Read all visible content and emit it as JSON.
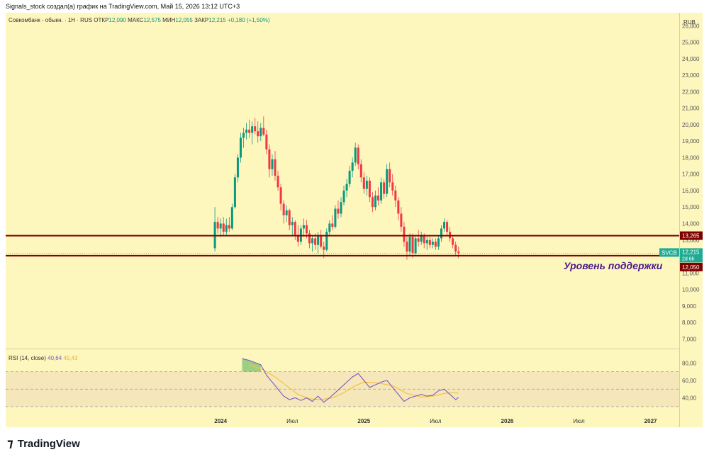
{
  "header": {
    "attribution": "Signals_stock создал(а) график на TradingView.com, Май 15, 2026 13:12 UTC+3"
  },
  "legend": {
    "symbol": "Совкомбанк - обыкн. · 1Н · RUS",
    "open_label": "ОТКР",
    "open": "12,090",
    "high_label": "МАКС",
    "high": "12,575",
    "low_label": "МИН",
    "low": "12,055",
    "close_label": "ЗАКР",
    "close": "12,215",
    "change": "+0,180 (+1,50%)"
  },
  "currency": "RUB",
  "price_badges": {
    "resistance": "13,265",
    "ticker": "SVCB",
    "last": "12,215",
    "countdown": "2d 6h",
    "support": "12,050"
  },
  "annotation": "Уровень поддержки",
  "rsi_legend": {
    "label": "RSI (14, close)",
    "rsi": "40,64",
    "ma": "45,43"
  },
  "footer": {
    "brand": "TradingView"
  },
  "colors": {
    "background": "#fdf6bd",
    "up": "#089981",
    "down": "#f23645",
    "level": "#800000",
    "rsi": "#7e57c2",
    "rsi_ma": "#f5c242",
    "ticker_badge": "#22ab94",
    "annotation": "#4a1a8c"
  },
  "chart_data": {
    "type": "candlestick",
    "title": "Совкомбанк - обыкн. · 1Н · RUS",
    "y_axis": {
      "ticks": [
        7000,
        8000,
        9000,
        10000,
        11000,
        12000,
        13000,
        14000,
        15000,
        16000,
        17000,
        18000,
        19000,
        20000,
        21000,
        22000,
        23000,
        24000,
        25000,
        26000
      ],
      "tick_labels": [
        "7,000",
        "8,000",
        "9,000",
        "10,000",
        "11,000",
        "12,000",
        "13,000",
        "14,000",
        "15,000",
        "16,000",
        "17,000",
        "18,000",
        "19,000",
        "20,000",
        "21,000",
        "22,000",
        "23,000",
        "24,000",
        "25,000",
        "26,000"
      ],
      "range": [
        6500,
        26700
      ]
    },
    "x_axis": {
      "labels": [
        "2024",
        "Июл",
        "2025",
        "Июл",
        "2026",
        "Июл",
        "2027"
      ],
      "label_times": [
        2024.0,
        2024.5,
        2025.0,
        2025.5,
        2026.0,
        2026.5,
        2027.0
      ],
      "range": [
        2022.5,
        2027.2
      ]
    },
    "levels": [
      {
        "price": 13265,
        "label": "13,265"
      },
      {
        "price": 12050,
        "label": "12,050"
      }
    ],
    "candles": [
      {
        "t": 2023.96,
        "o": 12500,
        "h": 15000,
        "l": 12300,
        "c": 14100
      },
      {
        "t": 2023.98,
        "o": 14100,
        "h": 14400,
        "l": 13400,
        "c": 13700
      },
      {
        "t": 2024.0,
        "o": 13700,
        "h": 14300,
        "l": 13200,
        "c": 14000
      },
      {
        "t": 2024.02,
        "o": 14000,
        "h": 14400,
        "l": 13300,
        "c": 13500
      },
      {
        "t": 2024.04,
        "o": 13500,
        "h": 14300,
        "l": 13300,
        "c": 13900
      },
      {
        "t": 2024.06,
        "o": 13900,
        "h": 14400,
        "l": 13500,
        "c": 13700
      },
      {
        "t": 2024.08,
        "o": 13700,
        "h": 15200,
        "l": 13600,
        "c": 15000
      },
      {
        "t": 2024.1,
        "o": 15000,
        "h": 17000,
        "l": 14900,
        "c": 16800
      },
      {
        "t": 2024.12,
        "o": 16800,
        "h": 18200,
        "l": 16500,
        "c": 18000
      },
      {
        "t": 2024.14,
        "o": 18000,
        "h": 19500,
        "l": 17700,
        "c": 19200
      },
      {
        "t": 2024.16,
        "o": 19200,
        "h": 19800,
        "l": 18600,
        "c": 19500
      },
      {
        "t": 2024.18,
        "o": 19500,
        "h": 20100,
        "l": 19100,
        "c": 19700
      },
      {
        "t": 2024.2,
        "o": 19700,
        "h": 20300,
        "l": 19200,
        "c": 19500
      },
      {
        "t": 2024.22,
        "o": 19500,
        "h": 20200,
        "l": 18800,
        "c": 19900
      },
      {
        "t": 2024.24,
        "o": 19900,
        "h": 20400,
        "l": 19400,
        "c": 19600
      },
      {
        "t": 2024.26,
        "o": 19600,
        "h": 20200,
        "l": 18900,
        "c": 19300
      },
      {
        "t": 2024.28,
        "o": 19300,
        "h": 20100,
        "l": 19000,
        "c": 19800
      },
      {
        "t": 2024.3,
        "o": 19800,
        "h": 20500,
        "l": 19300,
        "c": 19400
      },
      {
        "t": 2024.32,
        "o": 19400,
        "h": 19700,
        "l": 18200,
        "c": 18500
      },
      {
        "t": 2024.34,
        "o": 18500,
        "h": 18800,
        "l": 16800,
        "c": 17300
      },
      {
        "t": 2024.36,
        "o": 17300,
        "h": 18200,
        "l": 16900,
        "c": 17900
      },
      {
        "t": 2024.38,
        "o": 17900,
        "h": 18400,
        "l": 16600,
        "c": 16900
      },
      {
        "t": 2024.4,
        "o": 16900,
        "h": 17200,
        "l": 16000,
        "c": 16200
      },
      {
        "t": 2024.42,
        "o": 16200,
        "h": 16400,
        "l": 14800,
        "c": 15200
      },
      {
        "t": 2024.44,
        "o": 15200,
        "h": 15400,
        "l": 14000,
        "c": 14500
      },
      {
        "t": 2024.46,
        "o": 14500,
        "h": 15100,
        "l": 14100,
        "c": 14800
      },
      {
        "t": 2024.48,
        "o": 14800,
        "h": 14900,
        "l": 13600,
        "c": 13900
      },
      {
        "t": 2024.5,
        "o": 13900,
        "h": 14400,
        "l": 13300,
        "c": 14100
      },
      {
        "t": 2024.52,
        "o": 14100,
        "h": 14200,
        "l": 13000,
        "c": 13300
      },
      {
        "t": 2024.54,
        "o": 13300,
        "h": 13900,
        "l": 12600,
        "c": 12900
      },
      {
        "t": 2024.56,
        "o": 12900,
        "h": 13900,
        "l": 12700,
        "c": 13700
      },
      {
        "t": 2024.58,
        "o": 13700,
        "h": 14300,
        "l": 13200,
        "c": 13900
      },
      {
        "t": 2024.6,
        "o": 13900,
        "h": 14200,
        "l": 13100,
        "c": 13400
      },
      {
        "t": 2024.62,
        "o": 13400,
        "h": 13600,
        "l": 12500,
        "c": 12800
      },
      {
        "t": 2024.64,
        "o": 12800,
        "h": 13300,
        "l": 12300,
        "c": 13100
      },
      {
        "t": 2024.66,
        "o": 13100,
        "h": 13400,
        "l": 12400,
        "c": 12700
      },
      {
        "t": 2024.68,
        "o": 12700,
        "h": 13500,
        "l": 12200,
        "c": 13300
      },
      {
        "t": 2024.7,
        "o": 13300,
        "h": 13600,
        "l": 12500,
        "c": 12600
      },
      {
        "t": 2024.72,
        "o": 12600,
        "h": 12900,
        "l": 11900,
        "c": 12400
      },
      {
        "t": 2024.74,
        "o": 12400,
        "h": 13700,
        "l": 12300,
        "c": 13500
      },
      {
        "t": 2024.76,
        "o": 13500,
        "h": 14200,
        "l": 13300,
        "c": 14000
      },
      {
        "t": 2024.78,
        "o": 14000,
        "h": 14500,
        "l": 13600,
        "c": 13800
      },
      {
        "t": 2024.8,
        "o": 13800,
        "h": 15100,
        "l": 13700,
        "c": 14900
      },
      {
        "t": 2024.82,
        "o": 14900,
        "h": 15400,
        "l": 14300,
        "c": 14600
      },
      {
        "t": 2024.84,
        "o": 14600,
        "h": 15600,
        "l": 14400,
        "c": 15300
      },
      {
        "t": 2024.86,
        "o": 15300,
        "h": 16300,
        "l": 15100,
        "c": 16000
      },
      {
        "t": 2024.88,
        "o": 16000,
        "h": 16700,
        "l": 15600,
        "c": 16400
      },
      {
        "t": 2024.9,
        "o": 16400,
        "h": 17500,
        "l": 16200,
        "c": 17200
      },
      {
        "t": 2024.92,
        "o": 17200,
        "h": 18000,
        "l": 16800,
        "c": 17700
      },
      {
        "t": 2024.94,
        "o": 17700,
        "h": 18900,
        "l": 17500,
        "c": 18600
      },
      {
        "t": 2024.96,
        "o": 18600,
        "h": 18800,
        "l": 17300,
        "c": 17600
      },
      {
        "t": 2024.98,
        "o": 17600,
        "h": 17900,
        "l": 16500,
        "c": 16800
      },
      {
        "t": 2025.0,
        "o": 16800,
        "h": 17100,
        "l": 15800,
        "c": 16100
      },
      {
        "t": 2025.02,
        "o": 16100,
        "h": 16900,
        "l": 15700,
        "c": 16600
      },
      {
        "t": 2025.04,
        "o": 16600,
        "h": 16800,
        "l": 15300,
        "c": 15600
      },
      {
        "t": 2025.06,
        "o": 15600,
        "h": 15900,
        "l": 14700,
        "c": 15000
      },
      {
        "t": 2025.08,
        "o": 15000,
        "h": 16000,
        "l": 14800,
        "c": 15700
      },
      {
        "t": 2025.1,
        "o": 15700,
        "h": 16200,
        "l": 15100,
        "c": 15400
      },
      {
        "t": 2025.12,
        "o": 15400,
        "h": 16800,
        "l": 15200,
        "c": 16500
      },
      {
        "t": 2025.14,
        "o": 16500,
        "h": 16700,
        "l": 15500,
        "c": 15800
      },
      {
        "t": 2025.16,
        "o": 15800,
        "h": 17600,
        "l": 15600,
        "c": 17300
      },
      {
        "t": 2025.18,
        "o": 17300,
        "h": 17700,
        "l": 16200,
        "c": 16500
      },
      {
        "t": 2025.2,
        "o": 16500,
        "h": 17000,
        "l": 15700,
        "c": 16000
      },
      {
        "t": 2025.22,
        "o": 16000,
        "h": 16300,
        "l": 15000,
        "c": 15400
      },
      {
        "t": 2025.24,
        "o": 15400,
        "h": 15600,
        "l": 14200,
        "c": 14600
      },
      {
        "t": 2025.26,
        "o": 14600,
        "h": 15000,
        "l": 13500,
        "c": 13800
      },
      {
        "t": 2025.28,
        "o": 13800,
        "h": 14100,
        "l": 12600,
        "c": 12900
      },
      {
        "t": 2025.3,
        "o": 12900,
        "h": 13200,
        "l": 11800,
        "c": 12300
      },
      {
        "t": 2025.32,
        "o": 12300,
        "h": 13400,
        "l": 12000,
        "c": 13200
      },
      {
        "t": 2025.34,
        "o": 13200,
        "h": 13400,
        "l": 11900,
        "c": 12200
      },
      {
        "t": 2025.36,
        "o": 12200,
        "h": 13300,
        "l": 12100,
        "c": 13100
      },
      {
        "t": 2025.38,
        "o": 13100,
        "h": 13600,
        "l": 12600,
        "c": 12900
      },
      {
        "t": 2025.4,
        "o": 12900,
        "h": 13500,
        "l": 12700,
        "c": 13300
      },
      {
        "t": 2025.42,
        "o": 13300,
        "h": 13400,
        "l": 12500,
        "c": 12800
      },
      {
        "t": 2025.44,
        "o": 12800,
        "h": 13200,
        "l": 12400,
        "c": 13000
      },
      {
        "t": 2025.46,
        "o": 13000,
        "h": 13200,
        "l": 12500,
        "c": 12700
      },
      {
        "t": 2025.48,
        "o": 12700,
        "h": 13100,
        "l": 12500,
        "c": 12900
      },
      {
        "t": 2025.5,
        "o": 12900,
        "h": 13100,
        "l": 12400,
        "c": 12600
      },
      {
        "t": 2025.52,
        "o": 12600,
        "h": 13300,
        "l": 12400,
        "c": 13100
      },
      {
        "t": 2025.54,
        "o": 13100,
        "h": 13900,
        "l": 12900,
        "c": 13700
      },
      {
        "t": 2025.56,
        "o": 13700,
        "h": 14300,
        "l": 13500,
        "c": 14100
      },
      {
        "t": 2025.58,
        "o": 14100,
        "h": 14200,
        "l": 13300,
        "c": 13500
      },
      {
        "t": 2025.6,
        "o": 13500,
        "h": 13800,
        "l": 12900,
        "c": 13100
      },
      {
        "t": 2025.62,
        "o": 13100,
        "h": 13300,
        "l": 12500,
        "c": 12700
      },
      {
        "t": 2025.64,
        "o": 12700,
        "h": 12900,
        "l": 12000,
        "c": 12300
      },
      {
        "t": 2025.66,
        "o": 12300,
        "h": 12600,
        "l": 11900,
        "c": 12200
      }
    ],
    "rsi": {
      "name": "RSI (14, close)",
      "y_ticks": [
        40,
        60,
        80
      ],
      "y_tick_labels": [
        "40,00",
        "60,00",
        "80,00"
      ],
      "bands": [
        30,
        50,
        70
      ],
      "range": [
        25,
        90
      ],
      "rsi_values": [
        [
          2024.15,
          85
        ],
        [
          2024.2,
          83
        ],
        [
          2024.28,
          78
        ],
        [
          2024.32,
          66
        ],
        [
          2024.36,
          58
        ],
        [
          2024.4,
          50
        ],
        [
          2024.44,
          42
        ],
        [
          2024.48,
          38
        ],
        [
          2024.52,
          40
        ],
        [
          2024.56,
          37
        ],
        [
          2024.6,
          40
        ],
        [
          2024.64,
          36
        ],
        [
          2024.68,
          42
        ],
        [
          2024.72,
          35
        ],
        [
          2024.76,
          40
        ],
        [
          2024.8,
          46
        ],
        [
          2024.84,
          52
        ],
        [
          2024.88,
          58
        ],
        [
          2024.92,
          64
        ],
        [
          2024.96,
          68
        ],
        [
          2025.0,
          60
        ],
        [
          2025.04,
          52
        ],
        [
          2025.08,
          55
        ],
        [
          2025.12,
          58
        ],
        [
          2025.16,
          60
        ],
        [
          2025.2,
          52
        ],
        [
          2025.24,
          44
        ],
        [
          2025.28,
          36
        ],
        [
          2025.32,
          40
        ],
        [
          2025.36,
          42
        ],
        [
          2025.4,
          44
        ],
        [
          2025.44,
          42
        ],
        [
          2025.48,
          43
        ],
        [
          2025.52,
          48
        ],
        [
          2025.56,
          50
        ],
        [
          2025.6,
          44
        ],
        [
          2025.64,
          38
        ],
        [
          2025.66,
          40.64
        ]
      ],
      "ma_values": [
        [
          2024.2,
          78
        ],
        [
          2024.3,
          72
        ],
        [
          2024.38,
          64
        ],
        [
          2024.46,
          54
        ],
        [
          2024.54,
          44
        ],
        [
          2024.62,
          39
        ],
        [
          2024.7,
          38
        ],
        [
          2024.78,
          40
        ],
        [
          2024.86,
          46
        ],
        [
          2024.94,
          54
        ],
        [
          2025.0,
          58
        ],
        [
          2025.1,
          57
        ],
        [
          2025.2,
          54
        ],
        [
          2025.3,
          45
        ],
        [
          2025.4,
          41
        ],
        [
          2025.48,
          42
        ],
        [
          2025.56,
          45
        ],
        [
          2025.62,
          46
        ],
        [
          2025.66,
          45.43
        ]
      ]
    }
  }
}
